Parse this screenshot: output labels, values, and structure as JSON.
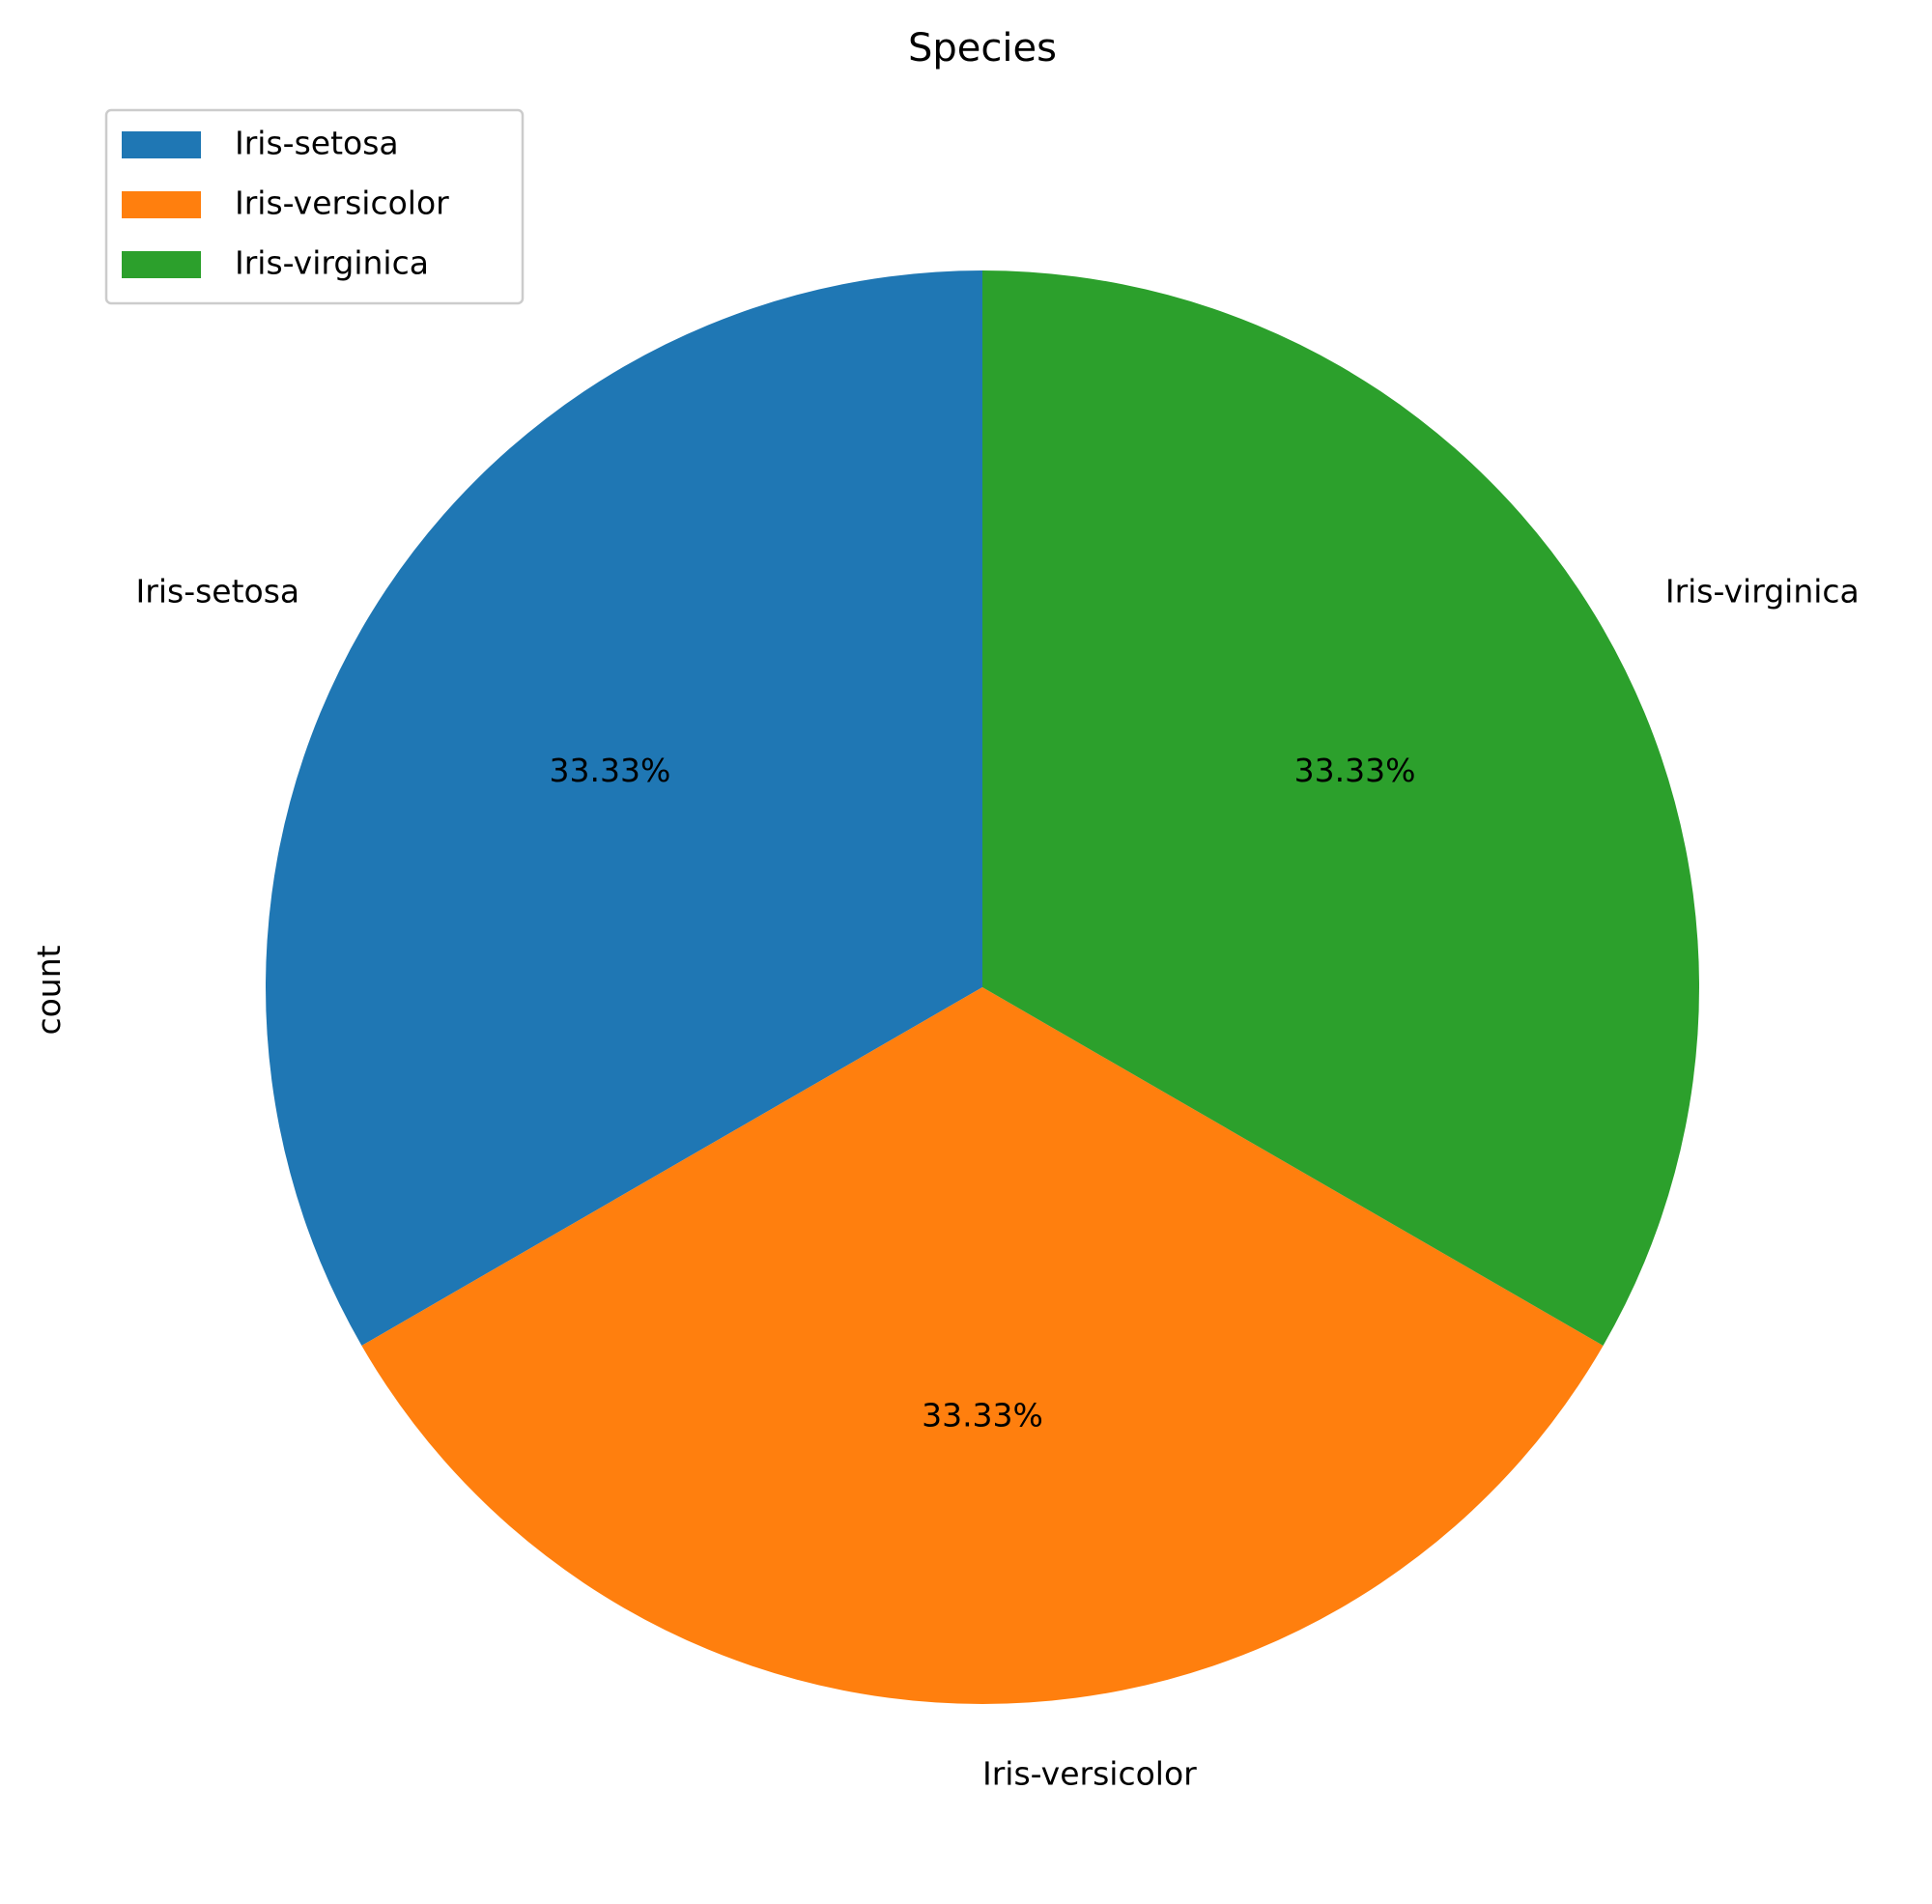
{
  "chart_data": {
    "type": "pie",
    "title": "Species",
    "ylabel": "count",
    "categories": [
      "Iris-setosa",
      "Iris-versicolor",
      "Iris-virginica"
    ],
    "values": [
      50,
      50,
      50
    ],
    "percent_labels": [
      "33.33%",
      "33.33%",
      "33.33%"
    ],
    "colors": [
      "#1f77b4",
      "#ff7f0e",
      "#2ca02c"
    ],
    "start_angle_deg": 90,
    "direction": "counterclockwise",
    "legend": {
      "position": "upper-left",
      "entries": [
        "Iris-setosa",
        "Iris-versicolor",
        "Iris-virginica"
      ]
    }
  }
}
